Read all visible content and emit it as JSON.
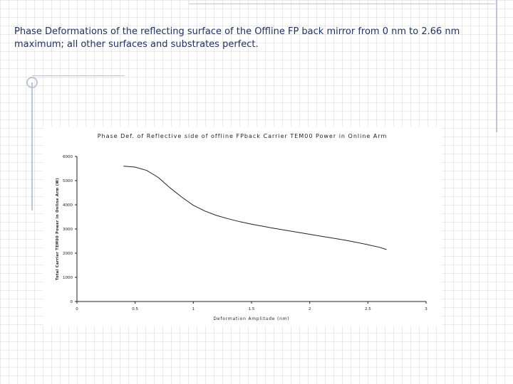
{
  "slide": {
    "caption": "Phase Deformations of the reflecting surface of the Offline FP back mirror from 0 nm to 2.66 nm maximum; all other surfaces and substrates perfect."
  },
  "colors": {
    "caption_text": "#1f2f5f",
    "accent_line": "#b8c6d8",
    "plot_line": "#222222"
  },
  "chart_data": {
    "type": "line",
    "title": "Phase Def. of Reflective side of offline FPback Carrier TEM00 Power in Online Arm",
    "xlabel": "Deformation Amplitude (nm)",
    "ylabel": "Total Carrier TEM00 Power in Online Arm (W)",
    "xlim": [
      0,
      3
    ],
    "ylim": [
      0,
      6000
    ],
    "x_ticks": [
      0,
      0.5,
      1,
      1.5,
      2,
      2.5,
      3
    ],
    "x_tick_labels": [
      "0",
      "0.5",
      "1",
      "1.5",
      "2",
      "2.5",
      "3"
    ],
    "y_ticks": [
      0,
      1000,
      2000,
      3000,
      4000,
      5000,
      6000
    ],
    "y_tick_labels": [
      "0",
      "1000",
      "2000",
      "3000",
      "4000",
      "5000",
      "6000"
    ],
    "grid": false,
    "series": [
      {
        "x": [
          0.4,
          0.5,
          0.6,
          0.7,
          0.8,
          0.9,
          1.0,
          1.1,
          1.2,
          1.3,
          1.4,
          1.5,
          1.6,
          1.7,
          1.8,
          1.9,
          2.0,
          2.1,
          2.2,
          2.3,
          2.4,
          2.5,
          2.6,
          2.66
        ],
        "y": [
          5600,
          5560,
          5420,
          5130,
          4700,
          4320,
          3980,
          3740,
          3560,
          3420,
          3300,
          3200,
          3110,
          3020,
          2940,
          2860,
          2780,
          2700,
          2620,
          2540,
          2450,
          2350,
          2240,
          2150
        ]
      }
    ]
  }
}
